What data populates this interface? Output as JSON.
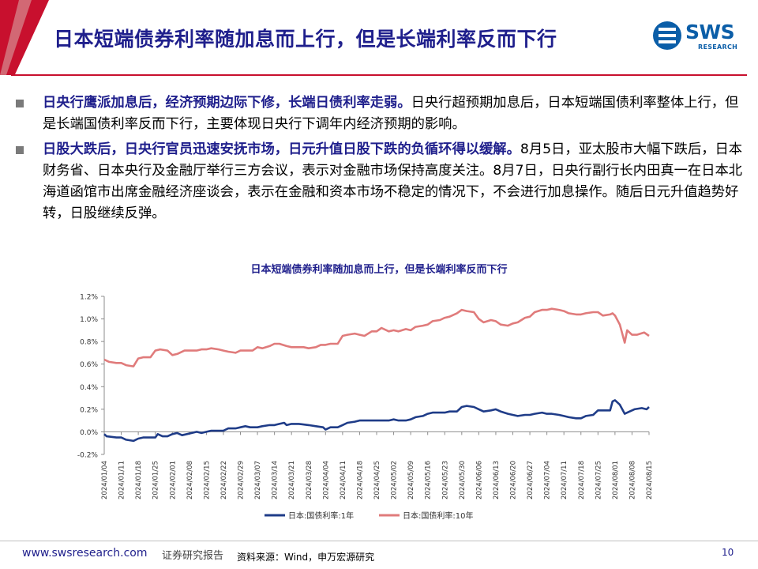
{
  "header": {
    "title": "日本短端债券利率随加息而上行，但是长端利率反而下行",
    "logo_text": "SWS",
    "logo_sub": "RESEARCH"
  },
  "bullets": [
    {
      "bold": "日央行鹰派加息后，经济预期边际下修，长端日债利率走弱。",
      "text": "日央行超预期加息后，日本短端国债利率整体上行，但是长端国债利率反而下行，主要体现日央行下调年内经济预期的影响。"
    },
    {
      "bold": "日股大跌后，日央行官员迅速安抚市场，日元升值日股下跌的负循环得以缓解。",
      "text": "8月5日，亚太股市大幅下跌后，日本财务省、日本央行及金融厅举行三方会议，表示对金融市场保持高度关注。8月7日，日央行副行长内田真一在日本北海道函馆市出席金融经济座谈会，表示在金融和资本市场不稳定的情况下，不会进行加息操作。随后日元升值趋势好转，日股继续反弹。"
    }
  ],
  "chart_data": {
    "type": "line",
    "title": "日本短端债券利率随加息而上行，但是长端利率反而下行",
    "xlabel": "",
    "ylabel": "",
    "ylim": [
      -0.2,
      1.2
    ],
    "yticks": [
      "1.2%",
      "1.0%",
      "0.8%",
      "0.6%",
      "0.4%",
      "0.2%",
      "0.0%",
      "-0.2%"
    ],
    "grid": false,
    "legend": "bottom",
    "x_ticks": [
      "2024/01/04",
      "2024/01/11",
      "2024/01/18",
      "2024/01/25",
      "2024/02/01",
      "2024/02/08",
      "2024/02/15",
      "2024/02/22",
      "2024/02/29",
      "2024/03/07",
      "2024/03/14",
      "2024/03/21",
      "2024/03/28",
      "2024/04/04",
      "2024/04/11",
      "2024/04/18",
      "2024/04/25",
      "2024/05/02",
      "2024/05/09",
      "2024/05/16",
      "2024/05/23",
      "2024/05/30",
      "2024/06/06",
      "2024/06/13",
      "2024/06/20",
      "2024/06/27",
      "2024/07/04",
      "2024/07/11",
      "2024/07/18",
      "2024/07/25",
      "2024/08/01",
      "2024/08/08",
      "2024/08/15"
    ],
    "series": [
      {
        "name": "日本:国债利率:1年",
        "color": "#1f3c88",
        "points": [
          [
            "2024-01-04",
            -0.02
          ],
          [
            "2024-01-05",
            -0.04
          ],
          [
            "2024-01-09",
            -0.05
          ],
          [
            "2024-01-11",
            -0.05
          ],
          [
            "2024-01-13",
            -0.07
          ],
          [
            "2024-01-16",
            -0.08
          ],
          [
            "2024-01-18",
            -0.06
          ],
          [
            "2024-01-20",
            -0.05
          ],
          [
            "2024-01-23",
            -0.05
          ],
          [
            "2024-01-25",
            -0.05
          ],
          [
            "2024-01-26",
            -0.02
          ],
          [
            "2024-01-28",
            -0.04
          ],
          [
            "2024-01-30",
            -0.04
          ],
          [
            "2024-02-01",
            -0.02
          ],
          [
            "2024-02-03",
            -0.01
          ],
          [
            "2024-02-05",
            -0.03
          ],
          [
            "2024-02-07",
            -0.02
          ],
          [
            "2024-02-09",
            -0.01
          ],
          [
            "2024-02-11",
            0.0
          ],
          [
            "2024-02-13",
            -0.01
          ],
          [
            "2024-02-15",
            0.0
          ],
          [
            "2024-02-17",
            0.01
          ],
          [
            "2024-02-20",
            0.01
          ],
          [
            "2024-02-22",
            0.01
          ],
          [
            "2024-02-24",
            0.03
          ],
          [
            "2024-02-27",
            0.03
          ],
          [
            "2024-02-29",
            0.04
          ],
          [
            "2024-03-02",
            0.05
          ],
          [
            "2024-03-04",
            0.04
          ],
          [
            "2024-03-07",
            0.04
          ],
          [
            "2024-03-09",
            0.05
          ],
          [
            "2024-03-12",
            0.06
          ],
          [
            "2024-03-14",
            0.06
          ],
          [
            "2024-03-16",
            0.07
          ],
          [
            "2024-03-18",
            0.08
          ],
          [
            "2024-03-19",
            0.06
          ],
          [
            "2024-03-21",
            0.07
          ],
          [
            "2024-03-24",
            0.07
          ],
          [
            "2024-03-28",
            0.06
          ],
          [
            "2024-03-31",
            0.05
          ],
          [
            "2024-04-03",
            0.04
          ],
          [
            "2024-04-04",
            0.02
          ],
          [
            "2024-04-06",
            0.04
          ],
          [
            "2024-04-09",
            0.04
          ],
          [
            "2024-04-11",
            0.06
          ],
          [
            "2024-04-13",
            0.08
          ],
          [
            "2024-04-16",
            0.09
          ],
          [
            "2024-04-18",
            0.1
          ],
          [
            "2024-04-20",
            0.1
          ],
          [
            "2024-04-23",
            0.1
          ],
          [
            "2024-04-25",
            0.1
          ],
          [
            "2024-04-27",
            0.1
          ],
          [
            "2024-04-30",
            0.1
          ],
          [
            "2024-05-02",
            0.11
          ],
          [
            "2024-05-04",
            0.1
          ],
          [
            "2024-05-07",
            0.1
          ],
          [
            "2024-05-09",
            0.11
          ],
          [
            "2024-05-11",
            0.13
          ],
          [
            "2024-05-14",
            0.14
          ],
          [
            "2024-05-16",
            0.16
          ],
          [
            "2024-05-18",
            0.17
          ],
          [
            "2024-05-21",
            0.17
          ],
          [
            "2024-05-23",
            0.17
          ],
          [
            "2024-05-25",
            0.18
          ],
          [
            "2024-05-28",
            0.18
          ],
          [
            "2024-05-30",
            0.22
          ],
          [
            "2024-06-01",
            0.23
          ],
          [
            "2024-06-04",
            0.22
          ],
          [
            "2024-06-06",
            0.2
          ],
          [
            "2024-06-08",
            0.18
          ],
          [
            "2024-06-11",
            0.19
          ],
          [
            "2024-06-13",
            0.2
          ],
          [
            "2024-06-15",
            0.18
          ],
          [
            "2024-06-18",
            0.16
          ],
          [
            "2024-06-20",
            0.15
          ],
          [
            "2024-06-22",
            0.14
          ],
          [
            "2024-06-25",
            0.15
          ],
          [
            "2024-06-27",
            0.15
          ],
          [
            "2024-06-29",
            0.16
          ],
          [
            "2024-07-02",
            0.17
          ],
          [
            "2024-07-04",
            0.16
          ],
          [
            "2024-07-06",
            0.16
          ],
          [
            "2024-07-09",
            0.15
          ],
          [
            "2024-07-11",
            0.14
          ],
          [
            "2024-07-13",
            0.13
          ],
          [
            "2024-07-16",
            0.12
          ],
          [
            "2024-07-18",
            0.12
          ],
          [
            "2024-07-20",
            0.14
          ],
          [
            "2024-07-23",
            0.15
          ],
          [
            "2024-07-25",
            0.19
          ],
          [
            "2024-07-27",
            0.19
          ],
          [
            "2024-07-30",
            0.19
          ],
          [
            "2024-07-31",
            0.27
          ],
          [
            "2024-08-01",
            0.28
          ],
          [
            "2024-08-03",
            0.24
          ],
          [
            "2024-08-05",
            0.16
          ],
          [
            "2024-08-07",
            0.18
          ],
          [
            "2024-08-09",
            0.2
          ],
          [
            "2024-08-12",
            0.21
          ],
          [
            "2024-08-14",
            0.2
          ],
          [
            "2024-08-15",
            0.22
          ]
        ]
      },
      {
        "name": "日本:国债利率:10年",
        "color": "#e07b7b",
        "points": [
          [
            "2024-01-04",
            0.64
          ],
          [
            "2024-01-06",
            0.62
          ],
          [
            "2024-01-09",
            0.61
          ],
          [
            "2024-01-11",
            0.61
          ],
          [
            "2024-01-13",
            0.59
          ],
          [
            "2024-01-16",
            0.58
          ],
          [
            "2024-01-18",
            0.65
          ],
          [
            "2024-01-20",
            0.66
          ],
          [
            "2024-01-23",
            0.66
          ],
          [
            "2024-01-25",
            0.72
          ],
          [
            "2024-01-27",
            0.73
          ],
          [
            "2024-01-30",
            0.72
          ],
          [
            "2024-02-01",
            0.68
          ],
          [
            "2024-02-03",
            0.69
          ],
          [
            "2024-02-06",
            0.72
          ],
          [
            "2024-02-08",
            0.72
          ],
          [
            "2024-02-11",
            0.72
          ],
          [
            "2024-02-13",
            0.73
          ],
          [
            "2024-02-15",
            0.73
          ],
          [
            "2024-02-17",
            0.74
          ],
          [
            "2024-02-20",
            0.73
          ],
          [
            "2024-02-22",
            0.72
          ],
          [
            "2024-02-24",
            0.71
          ],
          [
            "2024-02-27",
            0.7
          ],
          [
            "2024-02-29",
            0.72
          ],
          [
            "2024-03-02",
            0.72
          ],
          [
            "2024-03-05",
            0.72
          ],
          [
            "2024-03-07",
            0.75
          ],
          [
            "2024-03-09",
            0.74
          ],
          [
            "2024-03-12",
            0.76
          ],
          [
            "2024-03-14",
            0.78
          ],
          [
            "2024-03-16",
            0.78
          ],
          [
            "2024-03-19",
            0.76
          ],
          [
            "2024-03-21",
            0.75
          ],
          [
            "2024-03-24",
            0.75
          ],
          [
            "2024-03-26",
            0.75
          ],
          [
            "2024-03-28",
            0.74
          ],
          [
            "2024-03-31",
            0.75
          ],
          [
            "2024-04-02",
            0.77
          ],
          [
            "2024-04-04",
            0.77
          ],
          [
            "2024-04-06",
            0.78
          ],
          [
            "2024-04-09",
            0.78
          ],
          [
            "2024-04-11",
            0.85
          ],
          [
            "2024-04-13",
            0.86
          ],
          [
            "2024-04-16",
            0.87
          ],
          [
            "2024-04-18",
            0.86
          ],
          [
            "2024-04-20",
            0.85
          ],
          [
            "2024-04-23",
            0.89
          ],
          [
            "2024-04-25",
            0.89
          ],
          [
            "2024-04-27",
            0.92
          ],
          [
            "2024-04-30",
            0.89
          ],
          [
            "2024-05-02",
            0.9
          ],
          [
            "2024-05-04",
            0.89
          ],
          [
            "2024-05-07",
            0.91
          ],
          [
            "2024-05-09",
            0.9
          ],
          [
            "2024-05-11",
            0.93
          ],
          [
            "2024-05-14",
            0.94
          ],
          [
            "2024-05-16",
            0.95
          ],
          [
            "2024-05-18",
            0.98
          ],
          [
            "2024-05-21",
            0.99
          ],
          [
            "2024-05-23",
            1.01
          ],
          [
            "2024-05-25",
            1.02
          ],
          [
            "2024-05-28",
            1.05
          ],
          [
            "2024-05-30",
            1.08
          ],
          [
            "2024-06-01",
            1.07
          ],
          [
            "2024-06-04",
            1.06
          ],
          [
            "2024-06-06",
            1.0
          ],
          [
            "2024-06-08",
            0.97
          ],
          [
            "2024-06-11",
            0.99
          ],
          [
            "2024-06-13",
            0.98
          ],
          [
            "2024-06-15",
            0.95
          ],
          [
            "2024-06-18",
            0.94
          ],
          [
            "2024-06-20",
            0.96
          ],
          [
            "2024-06-22",
            0.97
          ],
          [
            "2024-06-25",
            1.01
          ],
          [
            "2024-06-27",
            1.02
          ],
          [
            "2024-06-29",
            1.06
          ],
          [
            "2024-07-02",
            1.08
          ],
          [
            "2024-07-04",
            1.08
          ],
          [
            "2024-07-06",
            1.09
          ],
          [
            "2024-07-09",
            1.08
          ],
          [
            "2024-07-11",
            1.07
          ],
          [
            "2024-07-13",
            1.05
          ],
          [
            "2024-07-16",
            1.04
          ],
          [
            "2024-07-18",
            1.04
          ],
          [
            "2024-07-20",
            1.05
          ],
          [
            "2024-07-23",
            1.06
          ],
          [
            "2024-07-25",
            1.06
          ],
          [
            "2024-07-27",
            1.03
          ],
          [
            "2024-07-30",
            1.04
          ],
          [
            "2024-07-31",
            1.05
          ],
          [
            "2024-08-01",
            1.03
          ],
          [
            "2024-08-03",
            0.95
          ],
          [
            "2024-08-05",
            0.79
          ],
          [
            "2024-08-06",
            0.9
          ],
          [
            "2024-08-08",
            0.86
          ],
          [
            "2024-08-10",
            0.86
          ],
          [
            "2024-08-13",
            0.88
          ],
          [
            "2024-08-15",
            0.85
          ]
        ]
      }
    ]
  },
  "footer": {
    "url": "www.swsresearch.com",
    "report": "证券研究报告",
    "source": "资料来源：Wind，申万宏源研究",
    "page": "10"
  }
}
